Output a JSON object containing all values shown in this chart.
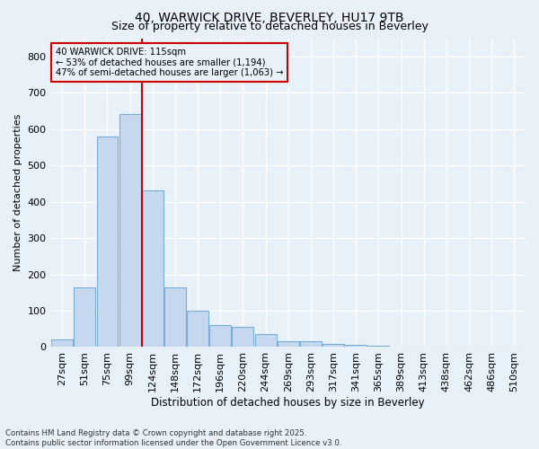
{
  "title1": "40, WARWICK DRIVE, BEVERLEY, HU17 9TB",
  "title2": "Size of property relative to detached houses in Beverley",
  "xlabel": "Distribution of detached houses by size in Beverley",
  "ylabel": "Number of detached properties",
  "categories": [
    "27sqm",
    "51sqm",
    "75sqm",
    "99sqm",
    "124sqm",
    "148sqm",
    "172sqm",
    "196sqm",
    "220sqm",
    "244sqm",
    "269sqm",
    "293sqm",
    "317sqm",
    "341sqm",
    "365sqm",
    "389sqm",
    "413sqm",
    "438sqm",
    "462sqm",
    "486sqm",
    "510sqm"
  ],
  "values": [
    20,
    165,
    580,
    640,
    430,
    165,
    100,
    60,
    55,
    35,
    15,
    15,
    8,
    5,
    3,
    1,
    1,
    0,
    1,
    0,
    0
  ],
  "bar_color": "#c5d8f0",
  "bar_edge_color": "#7aadd4",
  "bg_color": "#e8f0f8",
  "grid_color": "#ffffff",
  "annotation_line_color": "#cc0000",
  "annotation_box_color": "#cc0000",
  "annotation_text": "40 WARWICK DRIVE: 115sqm\n← 53% of detached houses are smaller (1,194)\n47% of semi-detached houses are larger (1,063) →",
  "vline_position": 3.55,
  "ylim": [
    0,
    850
  ],
  "yticks": [
    0,
    100,
    200,
    300,
    400,
    500,
    600,
    700,
    800
  ],
  "footnote1": "Contains HM Land Registry data © Crown copyright and database right 2025.",
  "footnote2": "Contains public sector information licensed under the Open Government Licence v3.0."
}
